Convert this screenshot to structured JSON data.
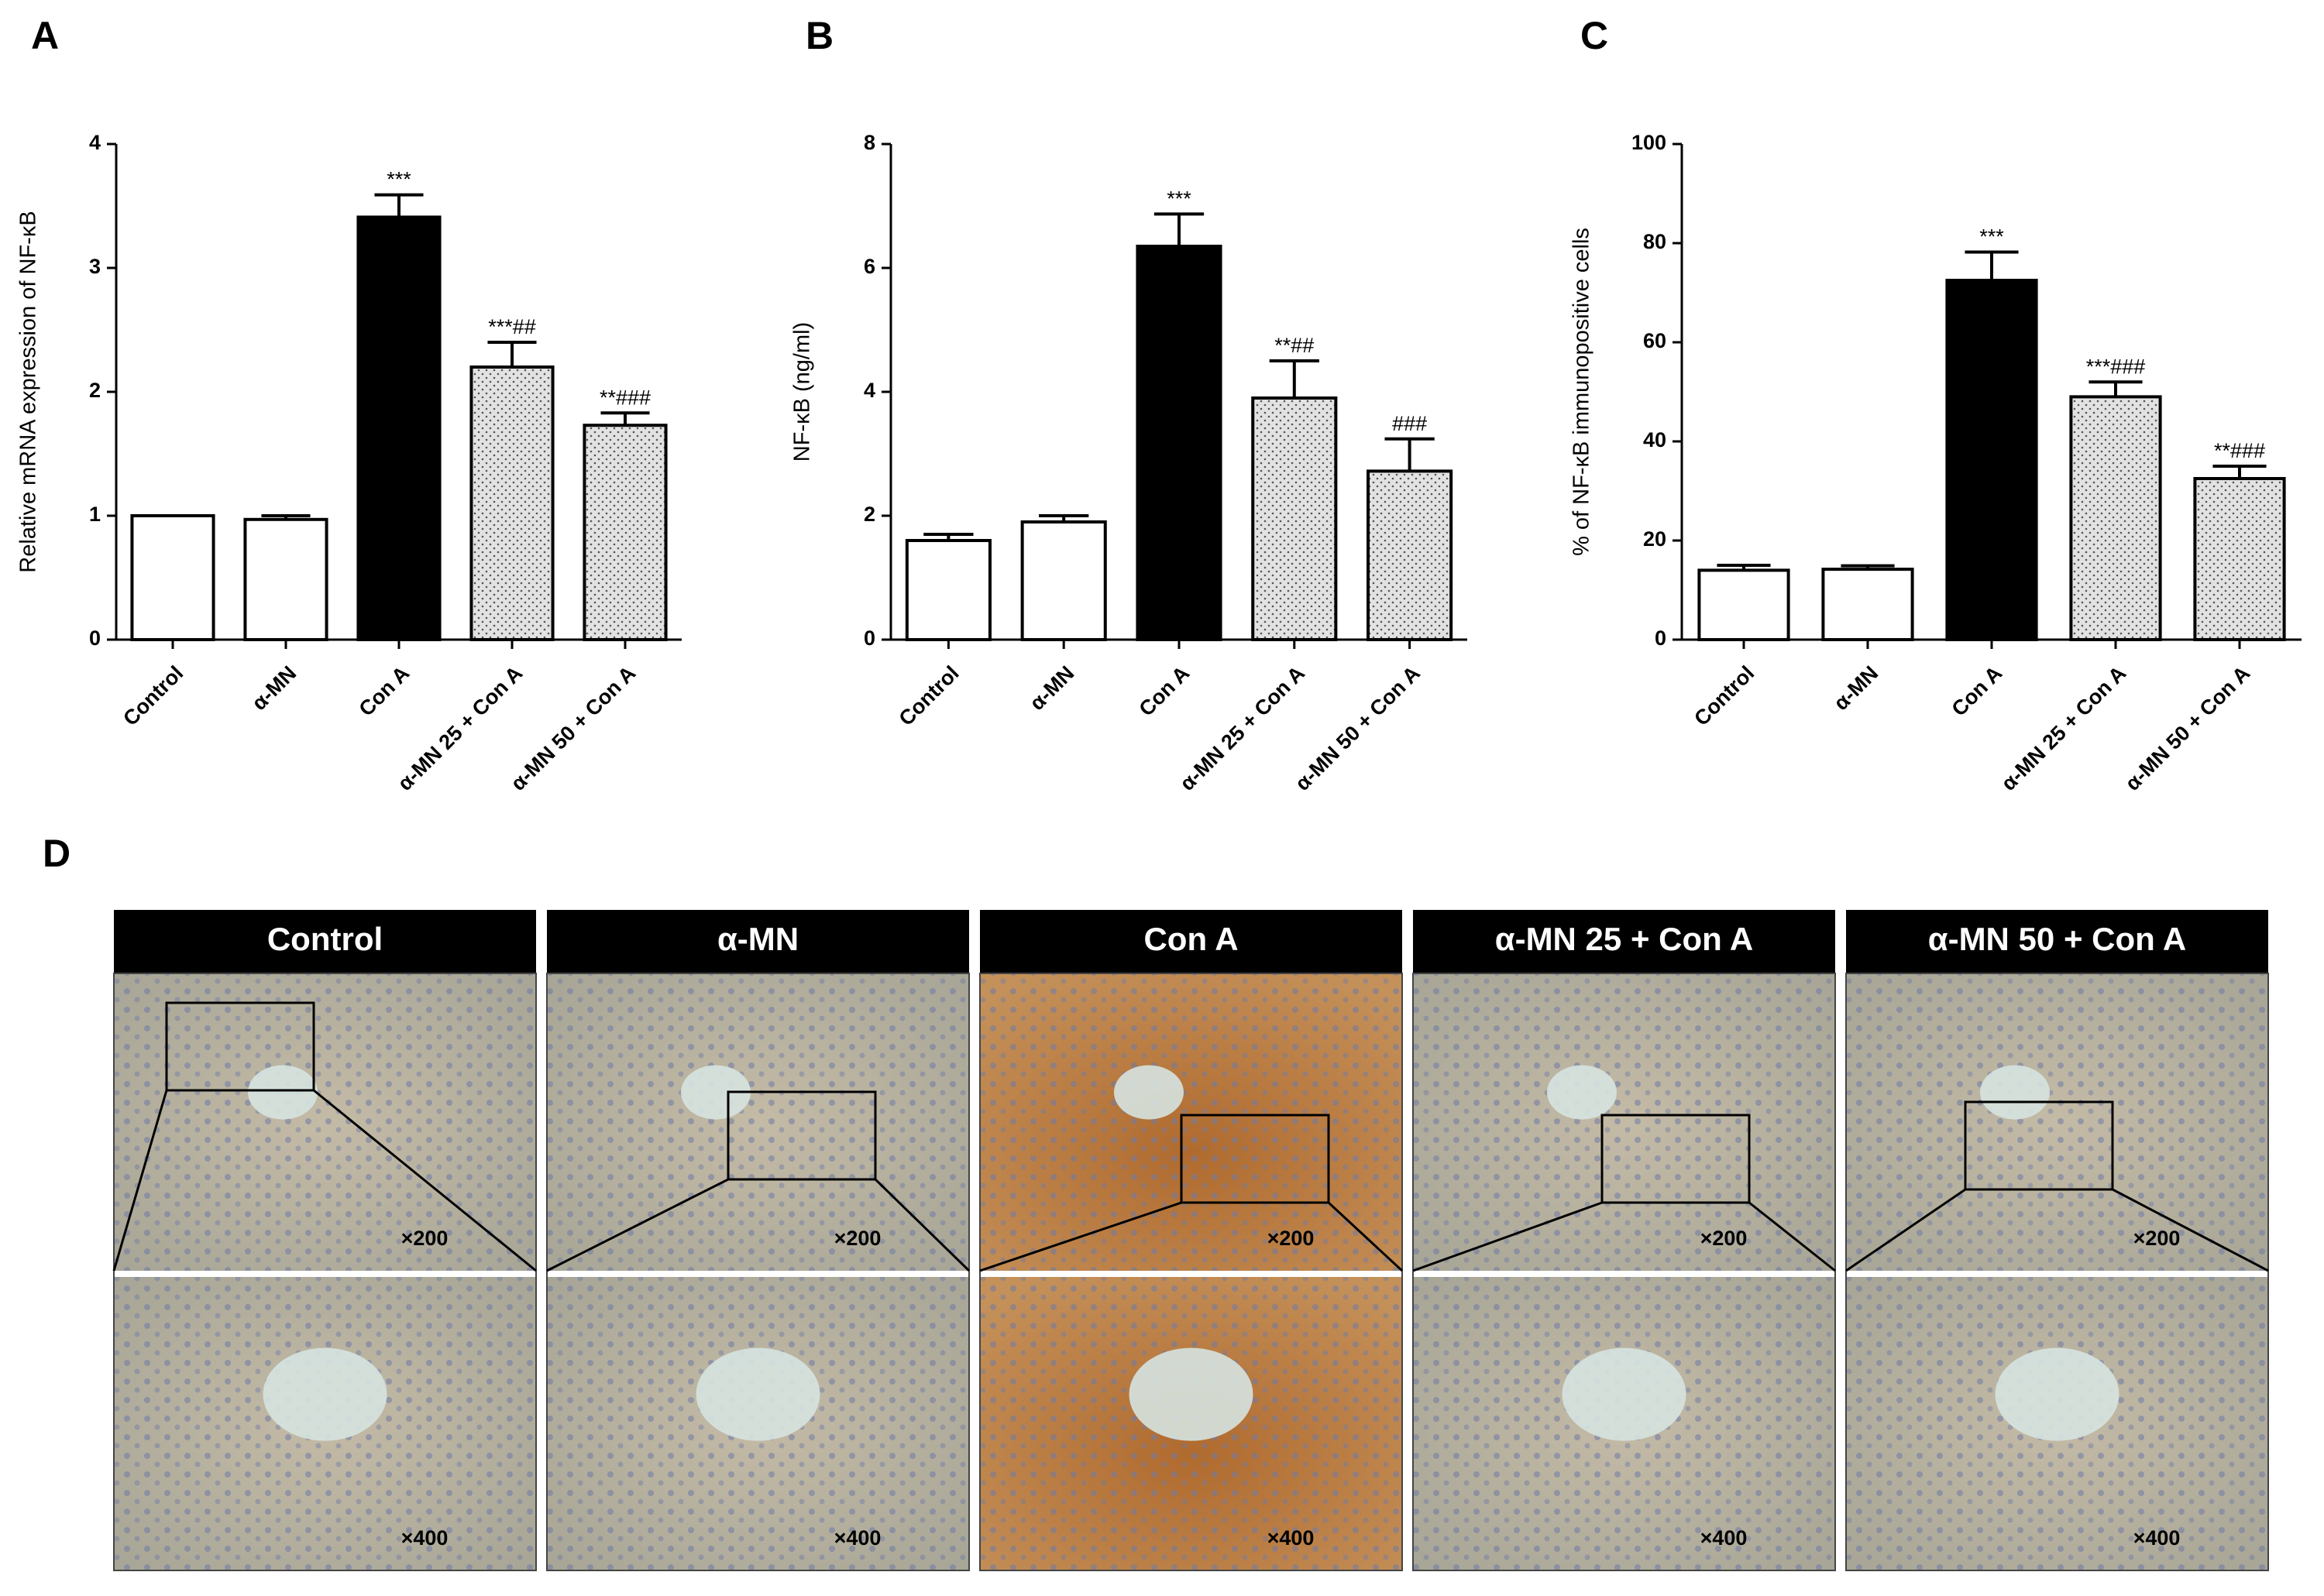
{
  "chart_data": [
    {
      "type": "bar",
      "label": "A",
      "ylabel": "Relative mRNA expression of NF-κB",
      "categories": [
        "Control",
        "α-MN",
        "Con A",
        "α-MN 25 + Con A",
        "α-MN 50 + Con A"
      ],
      "values": [
        1.0,
        0.97,
        3.41,
        2.2,
        1.73
      ],
      "errors": [
        0,
        0.03,
        0.18,
        0.2,
        0.1
      ],
      "annotations": [
        null,
        null,
        "***",
        "***##",
        "**###"
      ],
      "colors": [
        "#ffffff",
        "#ffffff",
        "#000000",
        "#e2e2e2",
        "#e2e2e2"
      ],
      "dotted": [
        false,
        false,
        false,
        true,
        true
      ],
      "ylim": [
        0,
        4
      ],
      "yticks": [
        0,
        1,
        2,
        3,
        4
      ]
    },
    {
      "type": "bar",
      "label": "B",
      "ylabel": "NF-κB (ng/ml)",
      "categories": [
        "Control",
        "α-MN",
        "Con A",
        "α-MN 25 + Con A",
        "α-MN 50 + Con A"
      ],
      "values": [
        1.6,
        1.9,
        6.35,
        3.9,
        2.72
      ],
      "errors": [
        0.1,
        0.1,
        0.52,
        0.6,
        0.52
      ],
      "annotations": [
        null,
        null,
        "***",
        "**##",
        "###"
      ],
      "colors": [
        "#ffffff",
        "#ffffff",
        "#000000",
        "#e2e2e2",
        "#e2e2e2"
      ],
      "dotted": [
        false,
        false,
        false,
        true,
        true
      ],
      "ylim": [
        0,
        8
      ],
      "yticks": [
        0,
        2,
        4,
        6,
        8
      ]
    },
    {
      "type": "bar",
      "label": "C",
      "ylabel": "% of NF-κB immunopositive cells",
      "categories": [
        "Control",
        "α-MN",
        "Con A",
        "α-MN 25 + Con A",
        "α-MN 50 + Con A"
      ],
      "values": [
        14,
        14.2,
        72.5,
        49,
        32.5
      ],
      "errors": [
        1,
        0.7,
        5.7,
        3,
        2.5
      ],
      "annotations": [
        null,
        null,
        "***",
        "***###",
        "**###"
      ],
      "colors": [
        "#ffffff",
        "#ffffff",
        "#000000",
        "#e2e2e2",
        "#e2e2e2"
      ],
      "dotted": [
        false,
        false,
        false,
        true,
        true
      ],
      "ylim": [
        0,
        100
      ],
      "yticks": [
        0,
        20,
        40,
        60,
        80,
        100
      ]
    }
  ],
  "panel_d": {
    "label": "D",
    "headers": [
      "Control",
      "α-MN",
      "Con A",
      "α-MN 25 + Con A",
      "α-MN 50 + Con A"
    ],
    "magnifications": [
      "×200",
      "×400"
    ]
  }
}
